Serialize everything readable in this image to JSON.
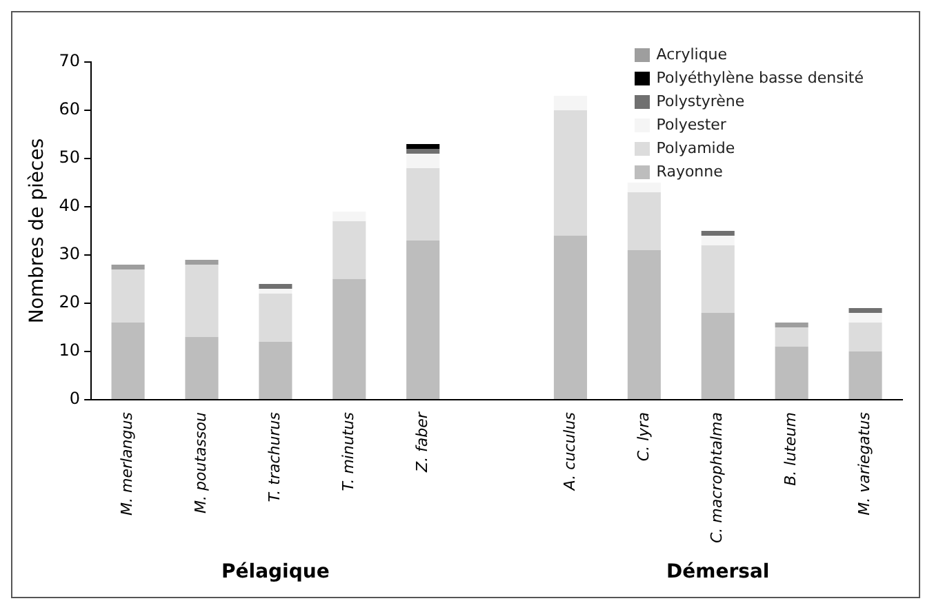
{
  "chart_data": {
    "type": "bar",
    "stacked": true,
    "ylabel": "Nombres de pièces",
    "categories": [
      "M. merlangus",
      "M. poutassou",
      "T. trachurus",
      "T. minutus",
      "Z. faber",
      null,
      "A. cuculus",
      "C. lyra",
      "C. macrophtalma",
      "B. luteum",
      "M. variegatus"
    ],
    "series": [
      {
        "name": "Rayonne",
        "color": "#bdbdbd",
        "values": [
          16,
          13,
          12,
          25,
          33,
          null,
          34,
          31,
          18,
          11,
          10
        ]
      },
      {
        "name": "Polyamide",
        "color": "#dcdcdc",
        "values": [
          11,
          15,
          10,
          12,
          15,
          null,
          26,
          12,
          14,
          4,
          6
        ]
      },
      {
        "name": "Polyester",
        "color": "#f5f5f5",
        "values": [
          0,
          0,
          1,
          2,
          3,
          null,
          3,
          2,
          2,
          0,
          2
        ]
      },
      {
        "name": "Polystyrène",
        "color": "#707070",
        "values": [
          0,
          0,
          1,
          0,
          1,
          null,
          0,
          0,
          1,
          0,
          1
        ]
      },
      {
        "name": "Polyéthylène basse densité",
        "color": "#000000",
        "values": [
          0,
          0,
          0,
          0,
          1,
          null,
          0,
          0,
          0,
          0,
          0
        ]
      },
      {
        "name": "Acrylique",
        "color": "#9e9e9e",
        "values": [
          1,
          1,
          0,
          0,
          0,
          null,
          0,
          0,
          0,
          1,
          0
        ]
      }
    ],
    "ylim": [
      0,
      70
    ],
    "yticks": [
      0,
      10,
      20,
      30,
      40,
      50,
      60,
      70
    ],
    "grid": false,
    "legend": "top right",
    "annotations": [
      "Pélagique",
      "Démersal"
    ]
  }
}
